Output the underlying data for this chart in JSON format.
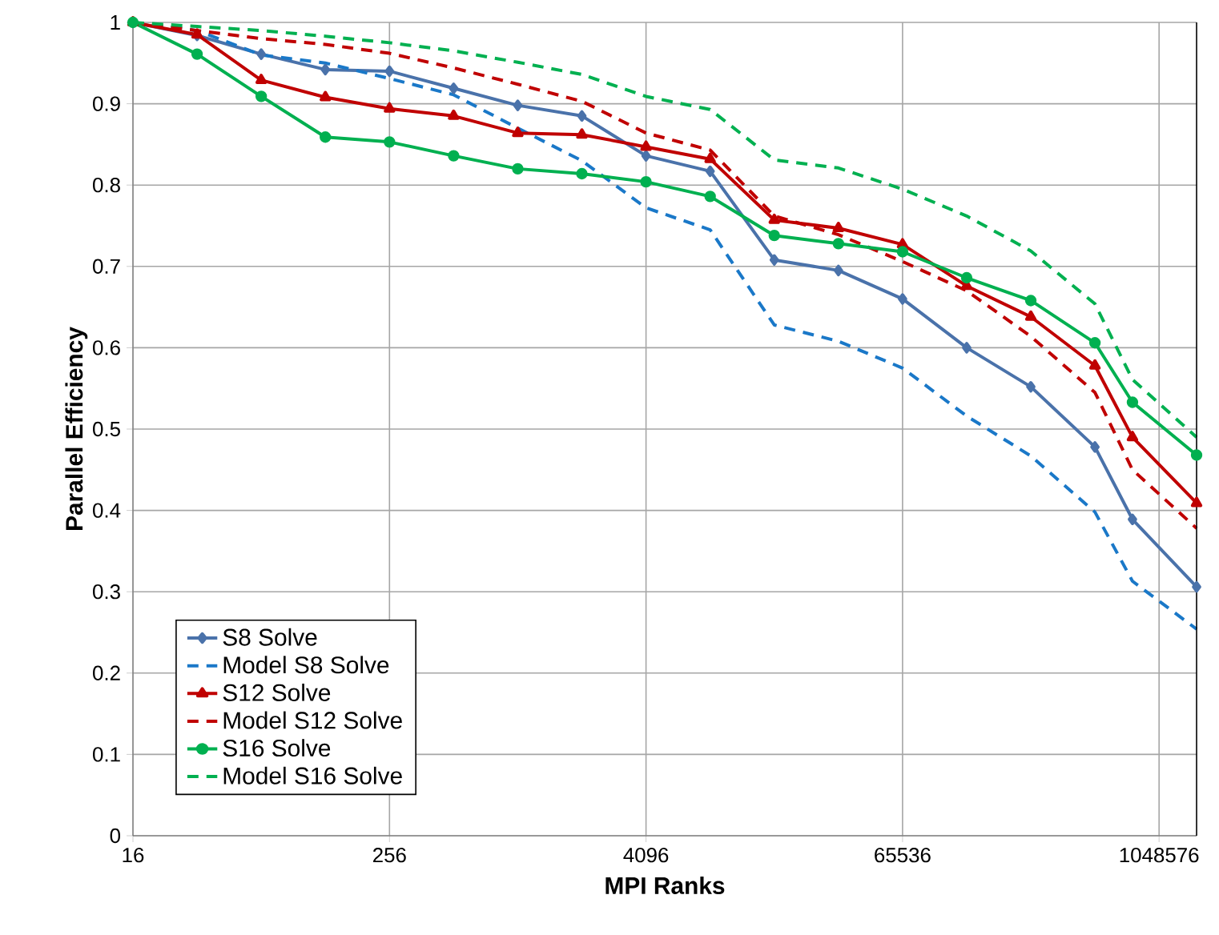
{
  "chart_data": {
    "type": "line",
    "xlabel": "MPI Ranks",
    "ylabel": "Parallel Efficiency",
    "x": [
      16,
      32,
      64,
      128,
      256,
      512,
      1024,
      2048,
      4096,
      8192,
      16384,
      32768,
      65536,
      131072,
      262144,
      524288,
      786432,
      1572864
    ],
    "xlim": [
      16,
      1572864
    ],
    "xticks": [
      16,
      256,
      4096,
      65536,
      1048576
    ],
    "ylim": [
      0,
      1
    ],
    "yticks": [
      0,
      0.1,
      0.2,
      0.3,
      0.4,
      0.5,
      0.6,
      0.7,
      0.8,
      0.9,
      1
    ],
    "log": "x",
    "grid": true,
    "legend": "bottom left",
    "series": [
      {
        "name": "S8 Solve",
        "color": "#4a72aa",
        "marker": "diamond",
        "line_style": "solid",
        "values": [
          1.0,
          0.984,
          0.961,
          0.942,
          0.94,
          0.919,
          0.898,
          0.885,
          0.836,
          0.817,
          0.708,
          0.695,
          0.66,
          0.6,
          0.552,
          0.478,
          0.389,
          0.306
        ]
      },
      {
        "name": "Model S8 Solve",
        "color": "#1a78c8",
        "marker": "none",
        "line_style": "dashed",
        "values": [
          1.0,
          0.99,
          0.96,
          0.95,
          0.931,
          0.911,
          0.87,
          0.83,
          0.772,
          0.745,
          0.628,
          0.608,
          0.575,
          0.516,
          0.467,
          0.398,
          0.313,
          0.254
        ]
      },
      {
        "name": "S12 Solve",
        "color": "#c00000",
        "marker": "triangle",
        "line_style": "solid",
        "values": [
          1.0,
          0.985,
          0.929,
          0.908,
          0.894,
          0.885,
          0.864,
          0.862,
          0.847,
          0.832,
          0.757,
          0.747,
          0.727,
          0.676,
          0.638,
          0.578,
          0.49,
          0.409
        ]
      },
      {
        "name": "Model S12 Solve",
        "color": "#c00000",
        "marker": "none",
        "line_style": "dashed",
        "values": [
          1.0,
          0.99,
          0.98,
          0.973,
          0.962,
          0.944,
          0.924,
          0.903,
          0.864,
          0.843,
          0.762,
          0.739,
          0.706,
          0.67,
          0.614,
          0.545,
          0.45,
          0.378
        ]
      },
      {
        "name": "S16 Solve",
        "color": "#00b050",
        "marker": "circle",
        "line_style": "solid",
        "values": [
          1.0,
          0.961,
          0.909,
          0.859,
          0.853,
          0.836,
          0.82,
          0.814,
          0.804,
          0.786,
          0.738,
          0.728,
          0.718,
          0.686,
          0.658,
          0.606,
          0.533,
          0.468
        ]
      },
      {
        "name": "Model S16 Solve",
        "color": "#00b050",
        "marker": "none",
        "line_style": "dashed",
        "values": [
          1.0,
          0.995,
          0.99,
          0.983,
          0.975,
          0.965,
          0.951,
          0.936,
          0.909,
          0.893,
          0.831,
          0.821,
          0.795,
          0.762,
          0.719,
          0.654,
          0.561,
          0.49
        ]
      }
    ]
  }
}
